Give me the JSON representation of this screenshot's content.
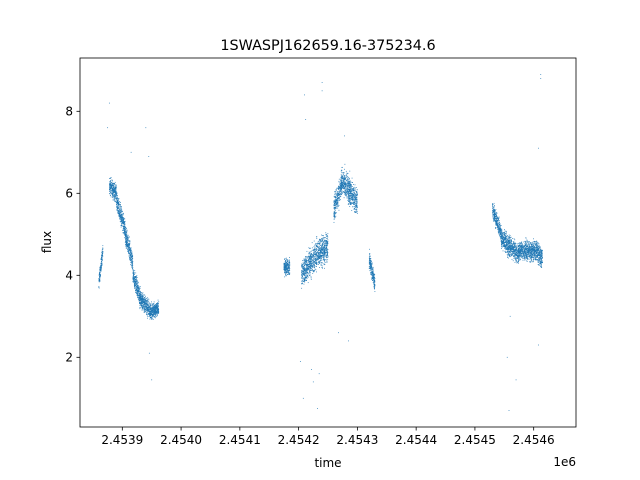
{
  "chart_data": {
    "type": "scatter",
    "title": "1SWASPJ162659.16-375234.6",
    "xlabel": "time",
    "ylabel": "flux",
    "x_offset_label": "1e6",
    "xlim": [
      2453828,
      2454672
    ],
    "ylim": [
      0.3,
      9.3
    ],
    "x_ticks": [
      2453900,
      2454000,
      2454100,
      2454200,
      2454300,
      2454400,
      2454500,
      2454600
    ],
    "x_tick_labels": [
      "2.4539",
      "2.4540",
      "2.4541",
      "2.4542",
      "2.4543",
      "2.4544",
      "2.4545",
      "2.4546"
    ],
    "y_ticks": [
      2,
      4,
      6,
      8
    ],
    "y_tick_labels": [
      "2",
      "4",
      "6",
      "8"
    ],
    "grid": false,
    "marker_color": "#1f77b4",
    "series_segments": [
      {
        "x0": 2453860,
        "x1": 2453867,
        "y0": 3.8,
        "y1": 4.6,
        "spread": 0.25
      },
      {
        "x0": 2453878,
        "x1": 2453890,
        "y0": 6.2,
        "y1": 6.0,
        "spread": 0.3
      },
      {
        "x0": 2453890,
        "x1": 2453905,
        "y0": 5.8,
        "y1": 5.1,
        "spread": 0.35
      },
      {
        "x0": 2453905,
        "x1": 2453918,
        "y0": 5.0,
        "y1": 4.3,
        "spread": 0.35
      },
      {
        "x0": 2453918,
        "x1": 2453932,
        "y0": 4.0,
        "y1": 3.4,
        "spread": 0.35
      },
      {
        "x0": 2453932,
        "x1": 2453950,
        "y0": 3.4,
        "y1": 3.1,
        "spread": 0.3
      },
      {
        "x0": 2453950,
        "x1": 2453962,
        "y0": 3.1,
        "y1": 3.2,
        "spread": 0.25
      },
      {
        "x0": 2454175,
        "x1": 2454185,
        "y0": 4.2,
        "y1": 4.2,
        "spread": 0.3
      },
      {
        "x0": 2454205,
        "x1": 2454230,
        "y0": 4.0,
        "y1": 4.5,
        "spread": 0.5
      },
      {
        "x0": 2454230,
        "x1": 2454250,
        "y0": 4.5,
        "y1": 4.7,
        "spread": 0.5
      },
      {
        "x0": 2454260,
        "x1": 2454275,
        "y0": 5.6,
        "y1": 6.3,
        "spread": 0.45
      },
      {
        "x0": 2454275,
        "x1": 2454300,
        "y0": 6.3,
        "y1": 5.8,
        "spread": 0.5
      },
      {
        "x0": 2454320,
        "x1": 2454330,
        "y0": 4.4,
        "y1": 3.8,
        "spread": 0.3
      },
      {
        "x0": 2454530,
        "x1": 2454545,
        "y0": 5.6,
        "y1": 5.0,
        "spread": 0.3
      },
      {
        "x0": 2454545,
        "x1": 2454575,
        "y0": 4.9,
        "y1": 4.5,
        "spread": 0.35
      },
      {
        "x0": 2454575,
        "x1": 2454605,
        "y0": 4.6,
        "y1": 4.6,
        "spread": 0.35
      },
      {
        "x0": 2454605,
        "x1": 2454615,
        "y0": 4.6,
        "y1": 4.4,
        "spread": 0.35
      }
    ],
    "outliers": [
      {
        "x": 2453878,
        "y": 8.2
      },
      {
        "x": 2453875,
        "y": 7.6
      },
      {
        "x": 2453940,
        "y": 7.6
      },
      {
        "x": 2453945,
        "y": 6.9
      },
      {
        "x": 2453915,
        "y": 7.0
      },
      {
        "x": 2453950,
        "y": 1.45
      },
      {
        "x": 2453946,
        "y": 2.1
      },
      {
        "x": 2454210,
        "y": 8.4
      },
      {
        "x": 2454212,
        "y": 7.8
      },
      {
        "x": 2454208,
        "y": 1.0
      },
      {
        "x": 2454203,
        "y": 1.9
      },
      {
        "x": 2454240,
        "y": 8.7
      },
      {
        "x": 2454240,
        "y": 8.5
      },
      {
        "x": 2454232,
        "y": 0.75
      },
      {
        "x": 2454225,
        "y": 1.4
      },
      {
        "x": 2454222,
        "y": 1.7
      },
      {
        "x": 2454235,
        "y": 1.6
      },
      {
        "x": 2454278,
        "y": 7.4
      },
      {
        "x": 2454285,
        "y": 2.4
      },
      {
        "x": 2454268,
        "y": 2.6
      },
      {
        "x": 2454558,
        "y": 0.7
      },
      {
        "x": 2454570,
        "y": 1.45
      },
      {
        "x": 2454555,
        "y": 2.0
      },
      {
        "x": 2454612,
        "y": 8.9
      },
      {
        "x": 2454612,
        "y": 8.8
      },
      {
        "x": 2454608,
        "y": 7.1
      },
      {
        "x": 2454608,
        "y": 2.3
      },
      {
        "x": 2454560,
        "y": 3.0
      }
    ]
  }
}
